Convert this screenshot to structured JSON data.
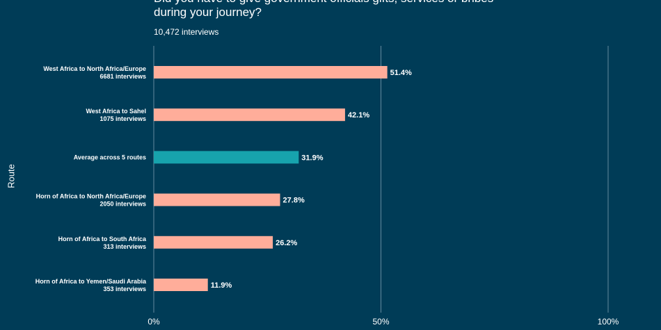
{
  "title_lines": [
    "Did you have to give government officials gifts, services or bribes",
    "during your journey?"
  ],
  "subtitle": "10,472 interviews",
  "chart_data": {
    "type": "bar",
    "orientation": "horizontal",
    "title": "Did you have to give government officials gifts, services or bribes during your journey?",
    "subtitle": "10,472 interviews",
    "ylabel": "Route",
    "xlabel": "",
    "xlim": [
      0,
      100
    ],
    "xticks": [
      0,
      50,
      100
    ],
    "xtick_labels": [
      "0%",
      "50%",
      "100%"
    ],
    "grid": "vertical",
    "categories": [
      {
        "name": "West Africa to North Africa/Europe",
        "sub": "6681 interviews",
        "value": 51.4,
        "label": "51.4%",
        "highlight": false
      },
      {
        "name": "West Africa to Sahel",
        "sub": "1075 interviews",
        "value": 42.1,
        "label": "42.1%",
        "highlight": false
      },
      {
        "name": "Average across 5 routes",
        "sub": "",
        "value": 31.9,
        "label": "31.9%",
        "highlight": true
      },
      {
        "name": "Horn of Africa to North Africa/Europe",
        "sub": "2050 interviews",
        "value": 27.8,
        "label": "27.8%",
        "highlight": false
      },
      {
        "name": "Horn of Africa to South Africa",
        "sub": "313 interviews",
        "value": 26.2,
        "label": "26.2%",
        "highlight": false
      },
      {
        "name": "Horn of Africa to Yemen/Saudi Arabia",
        "sub": "353 interviews",
        "value": 11.9,
        "label": "11.9%",
        "highlight": false
      }
    ],
    "colors": {
      "bar": "#ffad9a",
      "highlight": "#17a3ad",
      "background": "#003c57",
      "grid": "#7f9eb0",
      "text": "#ffffff"
    }
  }
}
